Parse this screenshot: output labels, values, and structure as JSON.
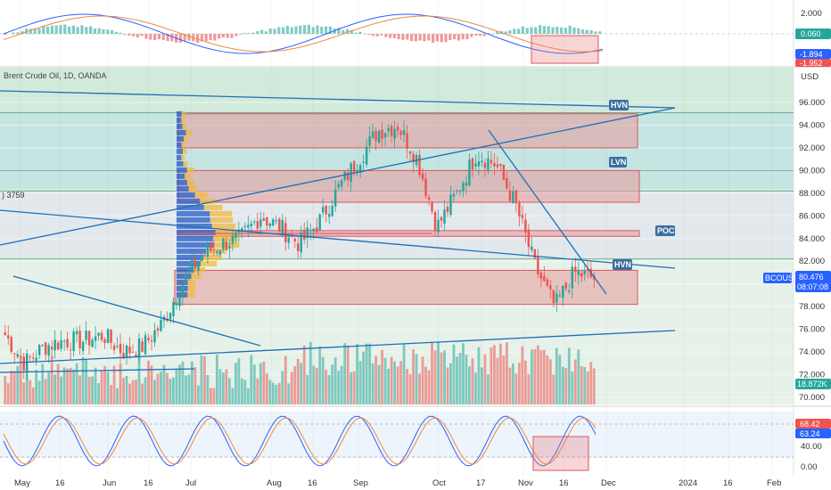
{
  "symbol_title": "Brent Crude Oil, 1D, OANDA",
  "currency_label": "USD",
  "left_cut_label": ") 3759",
  "price_axis": {
    "ticks": [
      "96.000",
      "94.000",
      "92.000",
      "90.000",
      "88.000",
      "86.000",
      "84.000",
      "82.000",
      "80.000",
      "78.000",
      "76.000",
      "74.000",
      "72.000",
      "70.000"
    ],
    "symbol_badge": "BCOUSD",
    "last_price": "80.476",
    "countdown": "08:07:08",
    "volume_badge": "18.872K"
  },
  "macd_axis": {
    "ticks": [
      "2.000",
      "0.060"
    ],
    "badge_blue": "-1.894",
    "badge_red": "-1.952"
  },
  "stoch_axis": {
    "ticks": [
      "40.00",
      "0.00"
    ],
    "badge_red": "68.42",
    "badge_blue": "63.24"
  },
  "time_axis": [
    "May",
    "16",
    "Jun",
    "16",
    "Jul",
    "Aug",
    "16",
    "Sep",
    "Oct",
    "17",
    "Nov",
    "16",
    "Dec",
    "2024",
    "16",
    "Feb"
  ],
  "zone_labels": {
    "hvn_top": "HVN",
    "lvn": "LVN",
    "poc": "POC",
    "hvn_bottom": "HVN"
  },
  "colors": {
    "up": "#26a69a",
    "down": "#ef5350",
    "blue_line": "#2962ff",
    "trend": "#1e6fb8",
    "zone_fill": "#e57373",
    "badge_blue": "#2962ff"
  },
  "chart_data": {
    "type": "candlestick",
    "title": "Brent Crude Oil, 1D, OANDA",
    "ylabel": "USD",
    "ylim": [
      69,
      98
    ],
    "x": [
      "May",
      "16",
      "Jun",
      "16",
      "Jul",
      "Aug",
      "16",
      "Sep",
      "Oct",
      "17",
      "Nov",
      "16",
      "Dec",
      "2024",
      "16",
      "Feb"
    ],
    "close_path": [
      [
        "May",
        75.5
      ],
      [
        "May+",
        73.0
      ],
      [
        "16",
        74.5
      ],
      [
        "16+",
        75.0
      ],
      [
        "Jun",
        75.0
      ],
      [
        "Jun+",
        75.5
      ],
      [
        "16",
        74.0
      ],
      [
        "16+",
        74.5
      ],
      [
        "Jul",
        76.5
      ],
      [
        "Jul+",
        80.0
      ],
      [
        "Jul++",
        82.5
      ],
      [
        "Jul+++",
        83.5
      ],
      [
        "Aug",
        84.0
      ],
      [
        "Aug+",
        86.0
      ],
      [
        "16",
        85.0
      ],
      [
        "16+",
        83.5
      ],
      [
        "16++",
        85.5
      ],
      [
        "Sep",
        88.5
      ],
      [
        "Sep+",
        91.0
      ],
      [
        "Sep++",
        93.5
      ],
      [
        "Sep+++",
        94.0
      ],
      [
        "Oct",
        91.0
      ],
      [
        "Oct+",
        85.0
      ],
      [
        "17",
        88.0
      ],
      [
        "17+",
        91.5
      ],
      [
        "17++",
        90.5
      ],
      [
        "Nov",
        87.0
      ],
      [
        "Nov+",
        81.5
      ],
      [
        "16",
        78.0
      ],
      [
        "16+",
        81.0
      ],
      [
        "16++",
        80.5
      ]
    ],
    "zones": [
      {
        "label": "HVN",
        "from": 92.0,
        "to": 95.0
      },
      {
        "label": "LVN",
        "from": 87.2,
        "to": 90.0
      },
      {
        "label": "POC",
        "from": 84.2,
        "to": 84.7
      },
      {
        "label": "HVN",
        "from": 78.2,
        "to": 81.2
      }
    ],
    "last_price": 80.476,
    "volume_last": "18.872K",
    "indicators": {
      "macd_last": [
        0.06,
        -1.894,
        -1.952
      ],
      "stoch_last": [
        68.42,
        63.24
      ]
    }
  }
}
